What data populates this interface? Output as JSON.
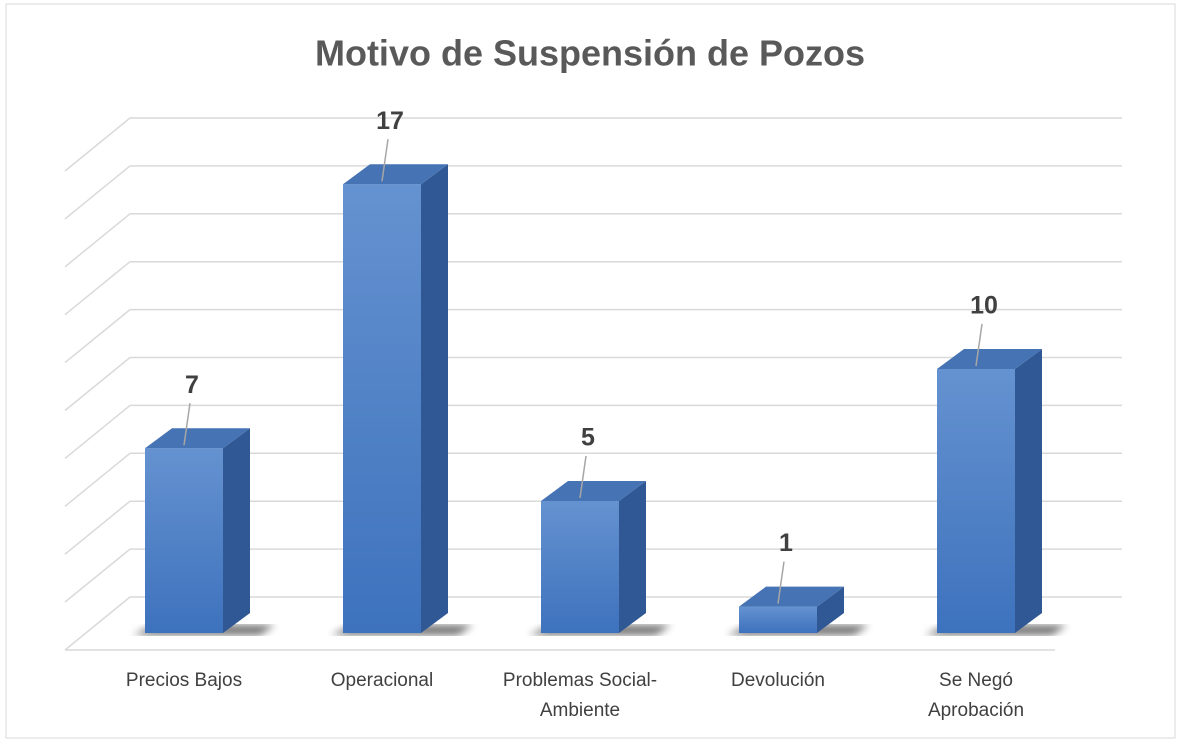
{
  "chart_data": {
    "type": "bar3d",
    "title": "Motivo de Suspensión de Pozos",
    "categories": [
      "Precios Bajos",
      "Operacional",
      "Problemas Social-Ambiente",
      "Devolución",
      "Se Negó Aprobación"
    ],
    "values": [
      7,
      17,
      5,
      1,
      10
    ],
    "color": "#4a7cc4",
    "ylim": [
      0,
      20
    ],
    "yticks": [
      0,
      2,
      4,
      6,
      8,
      10,
      12,
      14,
      16,
      18,
      20
    ],
    "grid": true
  }
}
